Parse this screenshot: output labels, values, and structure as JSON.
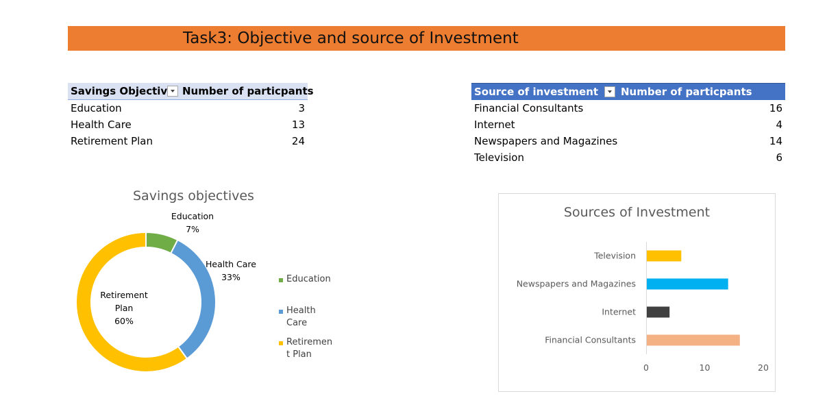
{
  "banner": {
    "title": "Task3: Objective and source of Investment",
    "color": "#ed7d31"
  },
  "savings_table": {
    "header": {
      "col1": "Savings Objective",
      "col2": "Number of particpants"
    },
    "rows": [
      {
        "label": "Education",
        "value": "3"
      },
      {
        "label": "Health Care",
        "value": "13"
      },
      {
        "label": "Retirement Plan",
        "value": "24"
      }
    ]
  },
  "source_table": {
    "header": {
      "col1": "Source of investment",
      "col2": "Number of particpants"
    },
    "rows": [
      {
        "label": "Financial Consultants",
        "value": "16"
      },
      {
        "label": "Internet",
        "value": "4"
      },
      {
        "label": "Newspapers and Magazines",
        "value": "14"
      },
      {
        "label": "Television",
        "value": "6"
      }
    ]
  },
  "chart_data": [
    {
      "type": "pie",
      "title": "Savings objectives",
      "categories": [
        "Education",
        "Health Care",
        "Retirement Plan"
      ],
      "values": [
        3,
        13,
        24
      ],
      "percent_labels": [
        "7%",
        "33%",
        "60%"
      ],
      "colors": [
        "#70ad47",
        "#5b9bd5",
        "#ffc000"
      ],
      "legend_entries": [
        "Education",
        "Health Care",
        "Retirement Plan"
      ],
      "legend_position": "right",
      "donut": true
    },
    {
      "type": "bar",
      "orientation": "horizontal",
      "title": "Sources of Investment",
      "categories": [
        "Financial Consultants",
        "Internet",
        "Newspapers and Magazines",
        "Television"
      ],
      "values": [
        16,
        4,
        14,
        6
      ],
      "colors": [
        "#f4b183",
        "#404040",
        "#00b0f0",
        "#ffc000"
      ],
      "xlim": [
        0,
        20
      ],
      "xticks": [
        "0",
        "10",
        "20"
      ],
      "grid": false
    }
  ]
}
